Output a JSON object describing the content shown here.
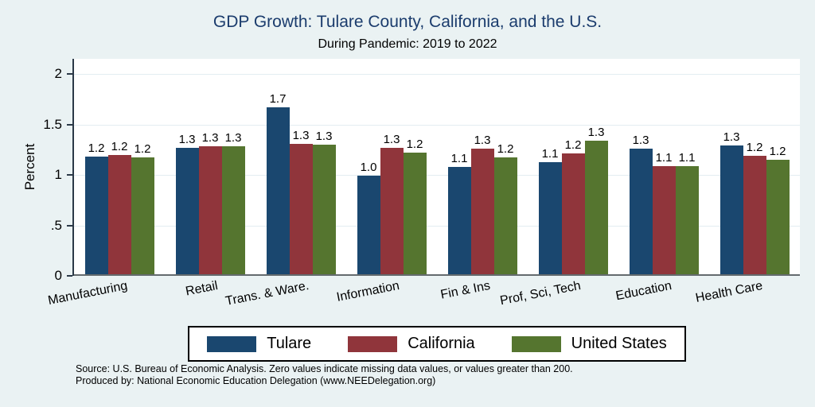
{
  "title": "GDP Growth: Tulare County, California, and the U.S.",
  "subtitle": "During Pandemic: 2019 to 2022",
  "source_line1": "Source: U.S. Bureau of Economic Analysis. Zero values indicate missing data values, or values greater than 200.",
  "source_line2": "Produced by: National Economic Education Delegation (www.NEEDelegation.org)",
  "colors": {
    "background": "#eaf2f3",
    "plot_background": "#ffffff",
    "gridline": "#e3edf1",
    "y_axis_line": "#2b3947",
    "x_axis_line": "#646b6e",
    "title_text": "#1b3c6d",
    "tulare": "#1a476f",
    "california": "#90353b",
    "united_states": "#55752f"
  },
  "chart_data": {
    "type": "bar",
    "title": "GDP Growth: Tulare County, California, and the U.S.",
    "subtitle": "During Pandemic: 2019 to 2022",
    "xlabel": "",
    "ylabel": "Percent",
    "ylim": [
      0,
      2.15
    ],
    "grid": true,
    "legend_position": "bottom",
    "ytick_labels": [
      "0",
      ".5",
      "1",
      "1.5",
      "2"
    ],
    "ytick_values": [
      0,
      0.5,
      1,
      1.5,
      2
    ],
    "categories": [
      "Manufacturing",
      "Retail",
      "Trans. & Ware.",
      "Information",
      "Fin & Ins",
      "Prof, Sci, Tech",
      "Education",
      "Health Care"
    ],
    "series": [
      {
        "name": "Tulare",
        "color": "#1a476f",
        "values": [
          1.18,
          1.27,
          1.67,
          0.99,
          1.08,
          1.13,
          1.26,
          1.29
        ],
        "bar_labels": [
          "1.2",
          "1.3",
          "1.7",
          "1.0",
          "1.1",
          "1.1",
          "1.3",
          "1.3"
        ]
      },
      {
        "name": "California",
        "color": "#90353b",
        "values": [
          1.2,
          1.28,
          1.31,
          1.27,
          1.26,
          1.21,
          1.09,
          1.19
        ],
        "bar_labels": [
          "1.2",
          "1.3",
          "1.3",
          "1.3",
          "1.3",
          "1.2",
          "1.1",
          "1.2"
        ]
      },
      {
        "name": "United States",
        "color": "#55752f",
        "values": [
          1.17,
          1.28,
          1.3,
          1.22,
          1.17,
          1.34,
          1.09,
          1.15
        ],
        "bar_labels": [
          "1.2",
          "1.3",
          "1.3",
          "1.2",
          "1.2",
          "1.3",
          "1.1",
          "1.2"
        ]
      }
    ]
  }
}
